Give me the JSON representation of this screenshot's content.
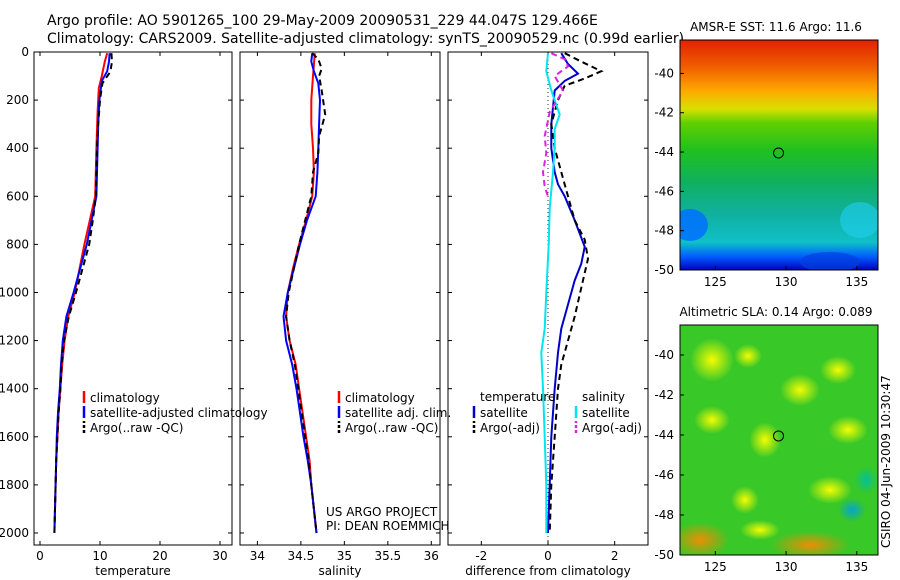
{
  "header": {
    "line1": "Argo profile: AO 5901265_100 29-May-2009 20090531_229 44.047S 129.466E",
    "line2": "Climatology: CARS2009. Satellite-adjusted climatology: synTS_20090529.nc (0.99d earlier)"
  },
  "colors": {
    "red": "#ff0000",
    "blue": "#0000ff",
    "navy": "#0000c8",
    "cyan": "#00e5ee",
    "magenta": "#e020e0",
    "black": "#000000"
  },
  "chart_data": [
    {
      "type": "line",
      "name": "temperature-profile",
      "xlabel": "temperature",
      "xlim": [
        -1,
        32
      ],
      "ylim": [
        2050,
        0
      ],
      "xticks": [
        "0",
        "10",
        "20",
        "30"
      ],
      "yticks": [
        "0",
        "200",
        "400",
        "600",
        "800",
        "1000",
        "1200",
        "1400",
        "1600",
        "1800",
        "2000"
      ],
      "legend": [
        "climatology",
        "satellite-adjusted climatology",
        "Argo(..raw -QC)"
      ],
      "series": [
        {
          "name": "climatology",
          "color": "#ff0000",
          "style": "solid",
          "points": [
            [
              11.2,
              5
            ],
            [
              10.8,
              40
            ],
            [
              10.3,
              100
            ],
            [
              9.8,
              150
            ],
            [
              9.6,
              250
            ],
            [
              9.4,
              400
            ],
            [
              9.3,
              500
            ],
            [
              9.2,
              600
            ],
            [
              8.3,
              700
            ],
            [
              7.4,
              800
            ],
            [
              6.6,
              900
            ],
            [
              5.8,
              1000
            ],
            [
              4.7,
              1100
            ],
            [
              4.1,
              1200
            ],
            [
              3.7,
              1300
            ],
            [
              3.4,
              1400
            ],
            [
              3.1,
              1500
            ],
            [
              2.9,
              1600
            ],
            [
              2.7,
              1700
            ],
            [
              2.6,
              1800
            ],
            [
              2.5,
              1900
            ],
            [
              2.4,
              2000
            ]
          ]
        },
        {
          "name": "satellite-adjusted climatology",
          "color": "#0000ff",
          "style": "solid",
          "points": [
            [
              11.6,
              5
            ],
            [
              11.5,
              40
            ],
            [
              11.2,
              80
            ],
            [
              10.3,
              120
            ],
            [
              9.9,
              200
            ],
            [
              9.7,
              300
            ],
            [
              9.6,
              400
            ],
            [
              9.5,
              500
            ],
            [
              9.4,
              600
            ],
            [
              8.6,
              700
            ],
            [
              7.8,
              800
            ],
            [
              6.7,
              900
            ],
            [
              5.6,
              1000
            ],
            [
              4.4,
              1100
            ],
            [
              3.8,
              1200
            ],
            [
              3.5,
              1300
            ],
            [
              3.3,
              1400
            ],
            [
              3.0,
              1500
            ],
            [
              2.8,
              1600
            ],
            [
              2.7,
              1700
            ],
            [
              2.6,
              1800
            ],
            [
              2.5,
              1900
            ],
            [
              2.4,
              2000
            ]
          ]
        },
        {
          "name": "Argo(..raw -QC)",
          "color": "#000000",
          "style": "dashed",
          "points": [
            [
              11.9,
              5
            ],
            [
              12.0,
              40
            ],
            [
              11.8,
              70
            ],
            [
              11.5,
              90
            ],
            [
              10.4,
              130
            ],
            [
              10.0,
              200
            ],
            [
              9.7,
              300
            ],
            [
              9.5,
              400
            ],
            [
              9.4,
              500
            ],
            [
              9.3,
              600
            ],
            [
              8.8,
              700
            ],
            [
              8.2,
              800
            ],
            [
              7.1,
              900
            ],
            [
              6.0,
              1000
            ],
            [
              4.8,
              1100
            ],
            [
              4.0,
              1200
            ],
            [
              3.6,
              1300
            ],
            [
              3.4,
              1400
            ],
            [
              3.1,
              1500
            ],
            [
              2.9,
              1600
            ],
            [
              2.7,
              1700
            ],
            [
              2.6,
              1800
            ],
            [
              2.5,
              1900
            ],
            [
              2.4,
              2000
            ]
          ]
        }
      ]
    },
    {
      "type": "line",
      "name": "salinity-profile",
      "xlabel": "salinity",
      "xlim": [
        33.8,
        36.1
      ],
      "ylim": [
        2050,
        0
      ],
      "xticks": [
        "34",
        "34.5",
        "35",
        "35.5",
        "36"
      ],
      "legend": [
        "climatology",
        "satellite adj. clim.",
        "Argo(..raw -QC)"
      ],
      "annotation": [
        "US ARGO PROJECT",
        "PI: DEAN ROEMMICH"
      ],
      "series": [
        {
          "name": "climatology",
          "color": "#ff0000",
          "style": "solid",
          "points": [
            [
              34.66,
              5
            ],
            [
              34.64,
              100
            ],
            [
              34.62,
              200
            ],
            [
              34.62,
              300
            ],
            [
              34.64,
              400
            ],
            [
              34.65,
              500
            ],
            [
              34.63,
              600
            ],
            [
              34.56,
              700
            ],
            [
              34.48,
              800
            ],
            [
              34.41,
              900
            ],
            [
              34.35,
              1000
            ],
            [
              34.33,
              1100
            ],
            [
              34.37,
              1200
            ],
            [
              34.44,
              1300
            ],
            [
              34.48,
              1400
            ],
            [
              34.52,
              1500
            ],
            [
              34.56,
              1600
            ],
            [
              34.6,
              1700
            ],
            [
              34.62,
              1800
            ],
            [
              34.65,
              1900
            ],
            [
              34.68,
              2000
            ]
          ]
        },
        {
          "name": "satellite adj. clim.",
          "color": "#0000ff",
          "style": "solid",
          "points": [
            [
              34.63,
              5
            ],
            [
              34.62,
              40
            ],
            [
              34.65,
              80
            ],
            [
              34.7,
              130
            ],
            [
              34.72,
              200
            ],
            [
              34.71,
              300
            ],
            [
              34.7,
              400
            ],
            [
              34.69,
              500
            ],
            [
              34.67,
              600
            ],
            [
              34.57,
              700
            ],
            [
              34.49,
              800
            ],
            [
              34.42,
              900
            ],
            [
              34.35,
              1000
            ],
            [
              34.3,
              1100
            ],
            [
              34.33,
              1200
            ],
            [
              34.4,
              1300
            ],
            [
              34.45,
              1400
            ],
            [
              34.49,
              1500
            ],
            [
              34.53,
              1600
            ],
            [
              34.58,
              1700
            ],
            [
              34.62,
              1800
            ],
            [
              34.65,
              1900
            ],
            [
              34.68,
              2000
            ]
          ]
        },
        {
          "name": "Argo(..raw -QC)",
          "color": "#000000",
          "style": "dashed",
          "points": [
            [
              34.63,
              5
            ],
            [
              34.7,
              30
            ],
            [
              34.74,
              70
            ],
            [
              34.71,
              100
            ],
            [
              34.74,
              160
            ],
            [
              34.78,
              260
            ],
            [
              34.71,
              350
            ],
            [
              34.7,
              420
            ],
            [
              34.64,
              500
            ],
            [
              34.62,
              600
            ],
            [
              34.55,
              700
            ],
            [
              34.48,
              800
            ],
            [
              34.42,
              900
            ],
            [
              34.36,
              1000
            ],
            [
              34.33,
              1100
            ],
            [
              34.37,
              1200
            ],
            [
              34.43,
              1300
            ],
            [
              34.47,
              1400
            ],
            [
              34.51,
              1500
            ],
            [
              34.55,
              1600
            ],
            [
              34.59,
              1700
            ],
            [
              34.62,
              1800
            ],
            [
              34.65,
              1900
            ],
            [
              34.68,
              2000
            ]
          ]
        }
      ]
    },
    {
      "type": "line",
      "name": "difference-profile",
      "xlabel": "difference from climatology",
      "xlim": [
        -3,
        3
      ],
      "ylim": [
        2050,
        0
      ],
      "xticks": [
        "-2",
        "0",
        "2"
      ],
      "legend_temperature_title": "temperature",
      "legend_salinity_title": "salinity",
      "legend_temperature": [
        "satellite",
        "Argo(-adj)"
      ],
      "legend_salinity": [
        "satellite",
        "Argo(-adj)"
      ],
      "series": [
        {
          "name": "temperature satellite",
          "color": "#0000c8",
          "style": "solid",
          "points": [
            [
              0.4,
              5
            ],
            [
              0.6,
              50
            ],
            [
              0.9,
              90
            ],
            [
              0.5,
              120
            ],
            [
              0.2,
              160
            ],
            [
              0.1,
              300
            ],
            [
              0.1,
              400
            ],
            [
              0.2,
              500
            ],
            [
              0.3,
              550
            ],
            [
              0.5,
              600
            ],
            [
              0.8,
              700
            ],
            [
              1.1,
              810
            ],
            [
              1.0,
              880
            ],
            [
              0.8,
              950
            ],
            [
              0.6,
              1050
            ],
            [
              0.4,
              1150
            ],
            [
              0.3,
              1250
            ],
            [
              0.2,
              1400
            ],
            [
              0.1,
              1600
            ],
            [
              0.05,
              1800
            ],
            [
              0.0,
              2000
            ]
          ]
        },
        {
          "name": "temperature Argo(-adj)",
          "color": "#000000",
          "style": "dashed",
          "points": [
            [
              0.5,
              5
            ],
            [
              1.0,
              40
            ],
            [
              1.6,
              80
            ],
            [
              1.1,
              110
            ],
            [
              0.5,
              140
            ],
            [
              0.3,
              200
            ],
            [
              0.1,
              300
            ],
            [
              0.2,
              400
            ],
            [
              0.4,
              500
            ],
            [
              0.6,
              600
            ],
            [
              0.8,
              700
            ],
            [
              1.1,
              780
            ],
            [
              1.2,
              860
            ],
            [
              1.0,
              980
            ],
            [
              0.8,
              1100
            ],
            [
              0.6,
              1200
            ],
            [
              0.4,
              1300
            ],
            [
              0.3,
              1400
            ],
            [
              0.2,
              1600
            ],
            [
              0.1,
              1800
            ],
            [
              0.05,
              2000
            ]
          ]
        },
        {
          "name": "salinity satellite",
          "color": "#00e5ee",
          "style": "solid",
          "points": [
            [
              0.0,
              5
            ],
            [
              -0.05,
              80
            ],
            [
              0.1,
              160
            ],
            [
              0.35,
              260
            ],
            [
              0.2,
              320
            ],
            [
              0.2,
              400
            ],
            [
              0.15,
              500
            ],
            [
              0.05,
              650
            ],
            [
              0.02,
              800
            ],
            [
              -0.05,
              1000
            ],
            [
              -0.1,
              1150
            ],
            [
              -0.2,
              1250
            ],
            [
              -0.15,
              1400
            ],
            [
              -0.1,
              1600
            ],
            [
              -0.05,
              1800
            ],
            [
              -0.05,
              2000
            ]
          ]
        },
        {
          "name": "salinity Argo(-adj)",
          "color": "#e020e0",
          "style": "dashed",
          "points": [
            [
              0.1,
              5
            ],
            [
              0.5,
              30
            ],
            [
              0.6,
              60
            ],
            [
              0.2,
              100
            ],
            [
              0.45,
              160
            ],
            [
              0.05,
              250
            ],
            [
              -0.1,
              350
            ],
            [
              -0.05,
              420
            ],
            [
              -0.15,
              500
            ],
            [
              -0.1,
              560
            ],
            [
              0.0,
              600
            ]
          ]
        }
      ]
    },
    {
      "type": "heatmap",
      "name": "sst-map",
      "title": "AMSR-E SST: 11.6 Argo: 11.6",
      "xlim": [
        122.5,
        136.5
      ],
      "ylim": [
        -50,
        -38.3
      ],
      "xticks": [
        "125",
        "130",
        "135"
      ],
      "yticks": [
        "-40",
        "-42",
        "-44",
        "-46",
        "-48",
        "-50"
      ],
      "marker": {
        "lon": 129.466,
        "lat": -44.047
      }
    },
    {
      "type": "heatmap",
      "name": "sla-map",
      "title": "Altimetric SLA: 0.14 Argo: 0.089",
      "xlim": [
        122.5,
        136.5
      ],
      "ylim": [
        -50,
        -38.5
      ],
      "xticks": [
        "125",
        "130",
        "135"
      ],
      "yticks": [
        "-40",
        "-42",
        "-44",
        "-46",
        "-48",
        "-50"
      ],
      "marker": {
        "lon": 129.466,
        "lat": -44.047
      }
    }
  ],
  "side_label": "CSIRO 04-Jun-2009 10:30:47"
}
